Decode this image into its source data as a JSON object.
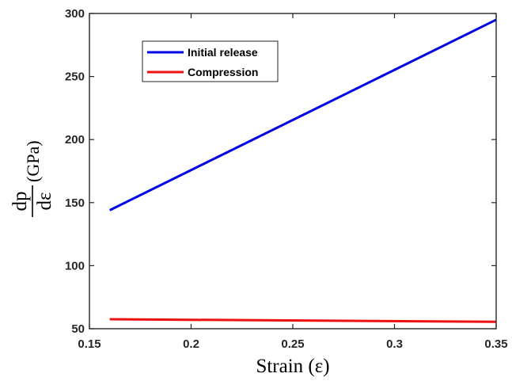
{
  "chart_data": {
    "type": "line",
    "xlabel": "Strain (ε)",
    "ylabel": {
      "numerator": "dp",
      "denominator": "dε",
      "unit": "(GPa)"
    },
    "xlim": [
      0.15,
      0.35
    ],
    "ylim": [
      50,
      300
    ],
    "x_ticks": [
      0.15,
      0.2,
      0.25,
      0.3,
      0.35
    ],
    "x_tick_labels": [
      "0.15",
      "0.2",
      "0.25",
      "0.3",
      "0.35"
    ],
    "y_ticks": [
      50,
      100,
      150,
      200,
      250,
      300
    ],
    "y_tick_labels": [
      "50",
      "100",
      "150",
      "200",
      "250",
      "300"
    ],
    "grid": false,
    "legend_position": "top-left",
    "series": [
      {
        "name": "Initial release",
        "color": "#0000e6",
        "x": [
          0.16,
          0.35
        ],
        "y": [
          144,
          295
        ]
      },
      {
        "name": "Compression",
        "color": "#ee1111",
        "x": [
          0.16,
          0.35
        ],
        "y": [
          57.5,
          55.5
        ]
      }
    ]
  }
}
